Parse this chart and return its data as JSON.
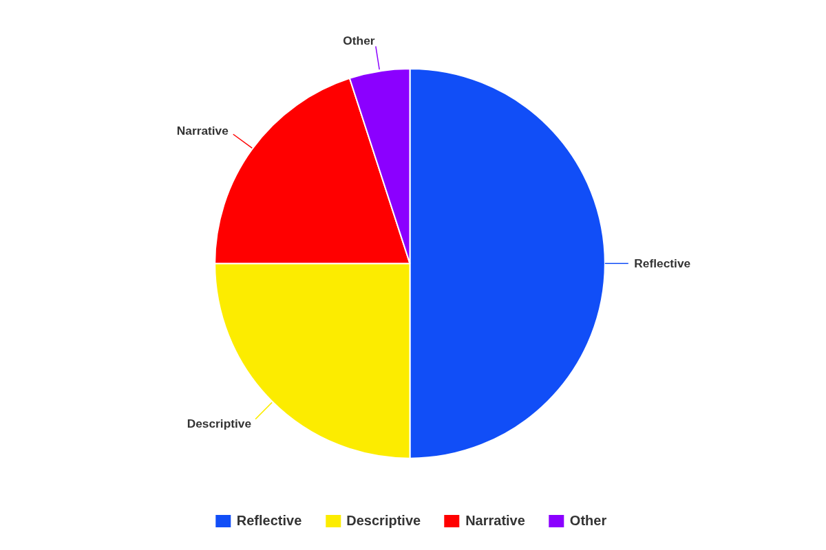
{
  "chart_data": {
    "type": "pie",
    "categories": [
      "Reflective",
      "Descriptive",
      "Narrative",
      "Other"
    ],
    "values": [
      50,
      25,
      20,
      5
    ],
    "colors": [
      "#114ef7",
      "#fcec00",
      "#ff0000",
      "#8b00ff"
    ],
    "legend": "bottom"
  }
}
